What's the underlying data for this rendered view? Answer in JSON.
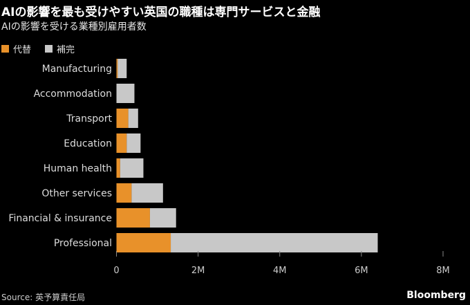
{
  "title": "AIの影響を最も受けやすい英国の職種は専門サービスと金融",
  "subtitle": "AIの影響を受ける業種別雇用者数",
  "source": "Source: 英予算責任局",
  "logo": "Bloomberg",
  "chart_data": {
    "type": "bar",
    "orientation": "horizontal",
    "stacked": true,
    "title": "AIの影響を最も受けやすい英国の職種は専門サービスと金融",
    "subtitle": "AIの影響を受ける業種別雇用者数",
    "categories": [
      "Manufacturing",
      "Accommodation",
      "Transport",
      "Education",
      "Human health",
      "Other services",
      "Financial & insurance",
      "Professional"
    ],
    "series": [
      {
        "name": "代替",
        "color": "#e8912a",
        "values": [
          0.03,
          0.0,
          0.29,
          0.25,
          0.09,
          0.37,
          0.82,
          1.33
        ]
      },
      {
        "name": "補完",
        "color": "#c8c8c8",
        "values": [
          0.22,
          0.44,
          0.24,
          0.34,
          0.57,
          0.77,
          0.64,
          5.07
        ]
      }
    ],
    "xlim": [
      0,
      8
    ],
    "xticks": [
      0,
      2,
      4,
      6,
      8
    ],
    "xtick_labels": [
      "0",
      "2M",
      "4M",
      "6M",
      "8M"
    ],
    "units": "millions",
    "legend": "top-left",
    "grid": false
  }
}
